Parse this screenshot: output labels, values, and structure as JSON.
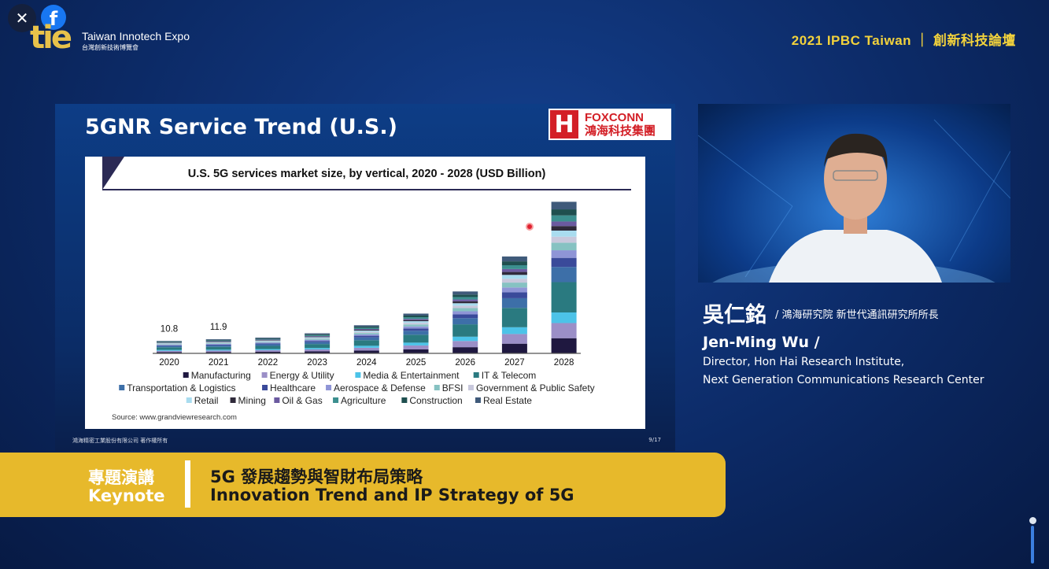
{
  "player": {
    "close_icon": "close-icon",
    "facebook_icon": "facebook-icon"
  },
  "brand": {
    "logo_text": "tie",
    "name": "Taiwan Innotech Expo",
    "name_zh": "台灣創新技術博覽會"
  },
  "event_title": "2021 IPBC Taiwan ｜ 創新科技論壇",
  "slide": {
    "title": "5GNR Service Trend (U.S.)",
    "logo": {
      "mark": "H",
      "name": "FOXCONN",
      "name_zh": "鴻海科技集團"
    },
    "footer": "鴻海精密工業股份有限公司  著作權所有",
    "page": "9/17"
  },
  "chart_data": {
    "type": "bar",
    "stacked": true,
    "title": "U.S. 5G services market size, by vertical, 2020 - 2028 (USD Billion)",
    "xlabel": "",
    "ylabel": "",
    "categories": [
      "2020",
      "2021",
      "2022",
      "2023",
      "2024",
      "2025",
      "2026",
      "2027",
      "2028"
    ],
    "data_labels": [
      "10.8",
      "11.9",
      "",
      "",
      "",
      "",
      "",
      "",
      ""
    ],
    "ylim": [
      0,
      135
    ],
    "grid": false,
    "legend": "bottom",
    "source": "Source: www.grandviewresearch.com",
    "series": [
      {
        "name": "Manufacturing",
        "color": "#1f1840",
        "values": [
          1.1,
          1.2,
          1.4,
          1.7,
          2.4,
          3.4,
          5.3,
          8.3,
          13.0
        ]
      },
      {
        "name": "Energy & Utility",
        "color": "#9b8fc7",
        "values": [
          1.1,
          1.2,
          1.4,
          1.7,
          2.4,
          3.4,
          5.3,
          8.3,
          13.0
        ]
      },
      {
        "name": "Media & Entertainment",
        "color": "#4cc3e8",
        "values": [
          0.8,
          0.8,
          0.9,
          1.2,
          1.7,
          2.4,
          3.7,
          5.8,
          9.1
        ]
      },
      {
        "name": "IT & Telecom",
        "color": "#2a7a80",
        "values": [
          2.2,
          2.4,
          2.7,
          3.4,
          4.8,
          6.8,
          10.6,
          16.6,
          26.0
        ]
      },
      {
        "name": "Transportation & Logistics",
        "color": "#3d6fa8",
        "values": [
          1.1,
          1.2,
          1.4,
          1.7,
          2.4,
          3.4,
          5.3,
          8.3,
          13.0
        ]
      },
      {
        "name": "Healthcare",
        "color": "#3a4a9a",
        "values": [
          0.6,
          0.7,
          0.8,
          1.0,
          1.4,
          2.0,
          3.2,
          5.0,
          7.8
        ]
      },
      {
        "name": "Aerospace & Defense",
        "color": "#8f95d6",
        "values": [
          0.5,
          0.6,
          0.7,
          0.9,
          1.2,
          1.7,
          2.7,
          4.2,
          6.5
        ]
      },
      {
        "name": "BFSI",
        "color": "#86c2c2",
        "values": [
          0.5,
          0.6,
          0.7,
          0.9,
          1.2,
          1.7,
          2.7,
          4.2,
          6.5
        ]
      },
      {
        "name": "Government & Public Safety",
        "color": "#c8c8dc",
        "values": [
          0.4,
          0.5,
          0.5,
          0.7,
          1.0,
          1.4,
          2.1,
          3.3,
          5.2
        ]
      },
      {
        "name": "Retail",
        "color": "#a9dcef",
        "values": [
          0.4,
          0.5,
          0.5,
          0.7,
          1.0,
          1.4,
          2.1,
          3.3,
          5.2
        ]
      },
      {
        "name": "Mining",
        "color": "#2f2a3a",
        "values": [
          0.3,
          0.4,
          0.4,
          0.5,
          0.7,
          1.0,
          1.6,
          2.5,
          3.9
        ]
      },
      {
        "name": "Oil & Gas",
        "color": "#6b5aa0",
        "values": [
          0.3,
          0.4,
          0.4,
          0.5,
          0.7,
          1.0,
          1.6,
          2.5,
          3.9
        ]
      },
      {
        "name": "Agriculture",
        "color": "#3c8f8f",
        "values": [
          0.4,
          0.5,
          0.5,
          0.7,
          1.0,
          1.4,
          2.1,
          3.3,
          5.2
        ]
      },
      {
        "name": "Construction",
        "color": "#1f4f4f",
        "values": [
          0.4,
          0.5,
          0.5,
          0.7,
          1.0,
          1.4,
          2.1,
          3.3,
          5.2
        ]
      },
      {
        "name": "Real Estate",
        "color": "#3f5a7a",
        "values": [
          0.5,
          0.6,
          0.7,
          0.9,
          1.2,
          1.7,
          2.7,
          4.2,
          6.5
        ]
      }
    ]
  },
  "speaker": {
    "name_zh": "吳仁銘",
    "title_zh": "/ 鴻海研究院 新世代通訊研究所所長",
    "name_en": "Jen-Ming Wu /",
    "role_line1": "Director, Hon Hai Research Institute,",
    "role_line2": "Next Generation Communications Research Center"
  },
  "banner": {
    "label_zh": "專題演講",
    "label_en": "Keynote",
    "title_zh": "5G 發展趨勢與智財布局策略",
    "title_en": "Innovation Trend and IP Strategy of 5G",
    "color": "#e7b92b"
  }
}
